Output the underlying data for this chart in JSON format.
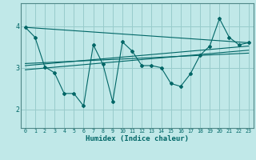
{
  "xlabel": "Humidex (Indice chaleur)",
  "bg_color": "#c0e8e8",
  "line_color": "#006666",
  "grid_color": "#98cccc",
  "xlim": [
    -0.5,
    23.5
  ],
  "ylim": [
    1.55,
    4.55
  ],
  "yticks": [
    2,
    3,
    4
  ],
  "xticks": [
    0,
    1,
    2,
    3,
    4,
    5,
    6,
    7,
    8,
    9,
    10,
    11,
    12,
    13,
    14,
    15,
    16,
    17,
    18,
    19,
    20,
    21,
    22,
    23
  ],
  "main_x": [
    0,
    1,
    2,
    3,
    4,
    5,
    6,
    7,
    8,
    9,
    10,
    11,
    12,
    13,
    14,
    15,
    16,
    17,
    18,
    19,
    20,
    21,
    22,
    23
  ],
  "main_y": [
    3.97,
    3.73,
    3.02,
    2.88,
    2.38,
    2.38,
    2.08,
    3.55,
    3.08,
    2.18,
    3.62,
    3.4,
    3.05,
    3.05,
    3.0,
    2.62,
    2.55,
    2.85,
    3.3,
    3.52,
    4.18,
    3.73,
    3.55,
    3.6
  ],
  "trend1_x": [
    0,
    23
  ],
  "trend1_y": [
    3.97,
    3.6
  ],
  "trend2_x": [
    0,
    23
  ],
  "trend2_y": [
    3.05,
    3.52
  ],
  "trend3_x": [
    0,
    23
  ],
  "trend3_y": [
    2.95,
    3.42
  ],
  "trend4_x": [
    0,
    23
  ],
  "trend4_y": [
    3.1,
    3.35
  ]
}
